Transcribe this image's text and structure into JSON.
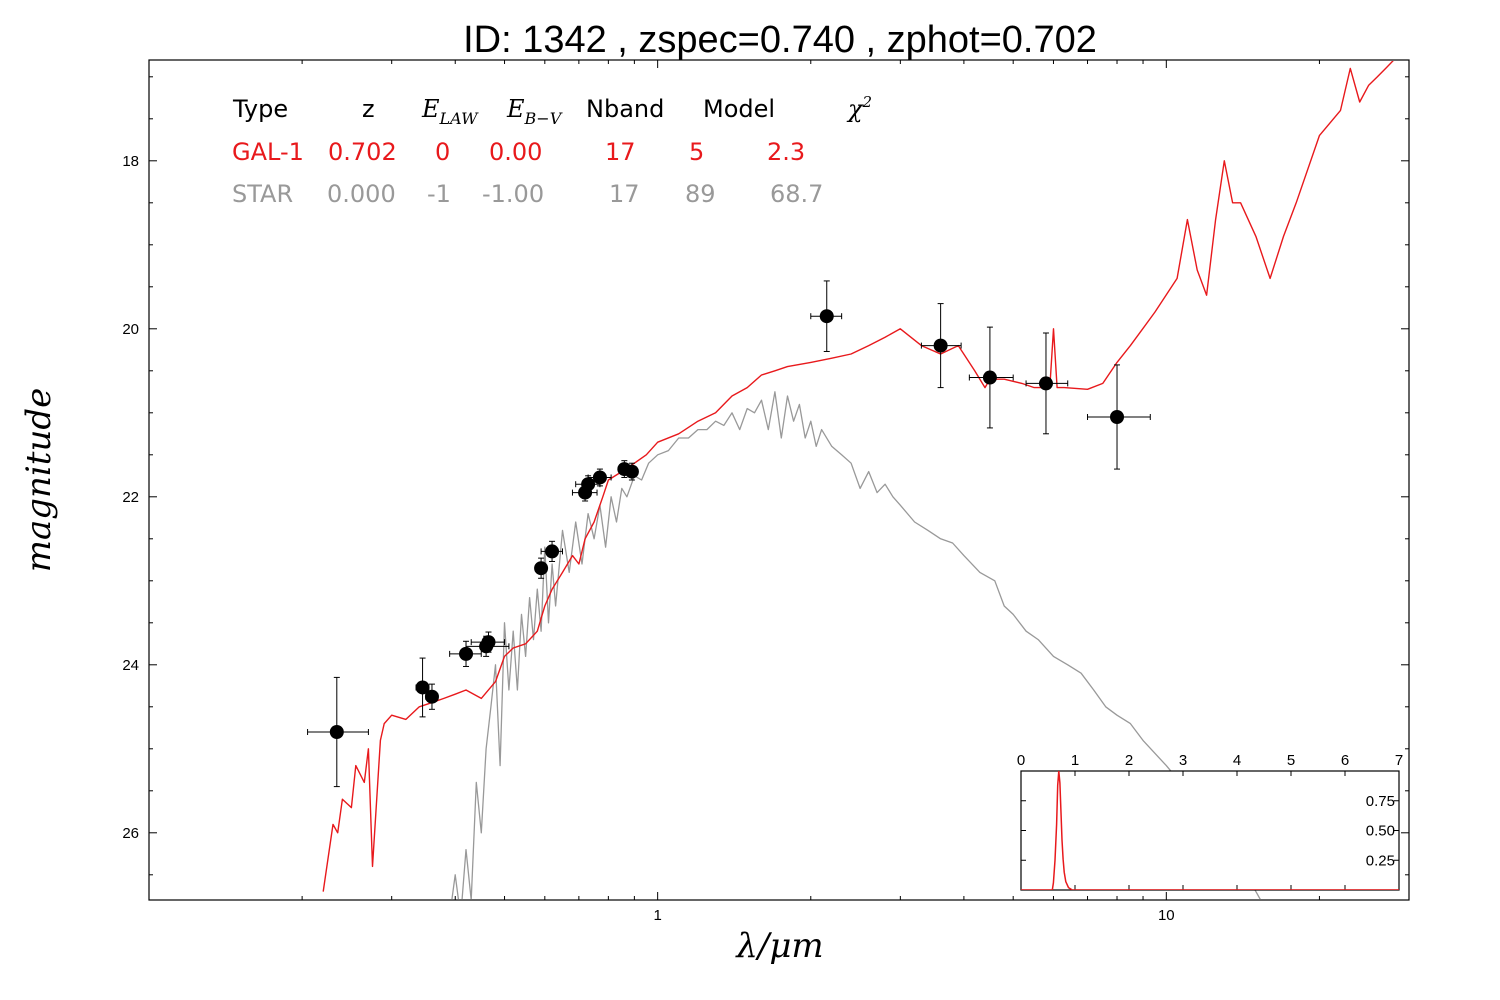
{
  "chart_data": {
    "type": "line",
    "title": "ID:  1342  , zspec=0.740 , zphot=0.702",
    "xlabel": "λ/μm",
    "ylabel": "magnitude",
    "x_scale": "log",
    "xlim": [
      0.1,
      30
    ],
    "ylim": [
      26.8,
      16.8
    ],
    "x_ticks": [
      1,
      10
    ],
    "x_tick_labels": [
      "1",
      "10"
    ],
    "y_ticks": [
      18,
      20,
      22,
      24,
      26
    ],
    "y_tick_labels": [
      "18",
      "20",
      "22",
      "24",
      "26"
    ],
    "table": {
      "headers": [
        "Type",
        "z",
        "E_LAW",
        "E_B-V",
        "Nband",
        "Model",
        "χ²"
      ],
      "rows": [
        {
          "name": "GAL-1",
          "color": "#e8191c",
          "values": [
            "GAL-1",
            "0.702",
            "0",
            "0.00",
            "17",
            "5",
            "2.3"
          ]
        },
        {
          "name": "STAR",
          "color": "#999999",
          "values": [
            "STAR",
            "0.000",
            "-1",
            "-1.00",
            "17",
            "89",
            "68.7"
          ]
        }
      ]
    },
    "series": [
      {
        "color": "#e8191c",
        "x": [
          0.22,
          0.23,
          0.235,
          0.24,
          0.25,
          0.255,
          0.265,
          0.27,
          0.275,
          0.285,
          0.29,
          0.3,
          0.32,
          0.34,
          0.36,
          0.38,
          0.4,
          0.42,
          0.45,
          0.48,
          0.5,
          0.52,
          0.55,
          0.58,
          0.6,
          0.62,
          0.65,
          0.68,
          0.7,
          0.72,
          0.75,
          0.78,
          0.8,
          0.85,
          0.9,
          0.95,
          1.0,
          1.1,
          1.2,
          1.3,
          1.4,
          1.5,
          1.6,
          1.7,
          1.8,
          2.0,
          2.2,
          2.4,
          2.6,
          2.8,
          3.0,
          3.3,
          3.6,
          3.9,
          4.2,
          4.4,
          4.5,
          4.8,
          5.2,
          5.5,
          5.9,
          6.0,
          6.1,
          6.3,
          7.0,
          7.5,
          8.0,
          8.5,
          9.5,
          10.5,
          11.0,
          11.5,
          12.0,
          12.5,
          13.0,
          13.5,
          14.0,
          15.0,
          16.0,
          17.0,
          18.0,
          20.0,
          22.0,
          23.0,
          24.0,
          25.0,
          26.0,
          27.0,
          28.0
        ],
        "y": [
          26.7,
          25.9,
          26.0,
          25.6,
          25.7,
          25.2,
          25.4,
          25.0,
          26.4,
          24.9,
          24.7,
          24.6,
          24.65,
          24.5,
          24.45,
          24.4,
          24.35,
          24.3,
          24.4,
          24.2,
          23.9,
          23.8,
          23.75,
          23.6,
          23.3,
          23.1,
          22.9,
          22.7,
          22.8,
          22.5,
          22.3,
          22.0,
          21.8,
          21.7,
          21.6,
          21.5,
          21.35,
          21.25,
          21.1,
          21.0,
          20.8,
          20.7,
          20.55,
          20.5,
          20.45,
          20.4,
          20.35,
          20.3,
          20.2,
          20.1,
          20.0,
          20.2,
          20.3,
          20.2,
          20.5,
          20.7,
          20.6,
          20.6,
          20.65,
          20.7,
          20.7,
          20.0,
          20.7,
          20.7,
          20.72,
          20.65,
          20.4,
          20.2,
          19.8,
          19.4,
          18.7,
          19.3,
          19.6,
          18.7,
          18.0,
          18.5,
          18.5,
          18.9,
          19.4,
          18.9,
          18.5,
          17.7,
          17.4,
          16.9,
          17.3,
          17.1,
          17.0,
          16.9,
          16.8
        ]
      },
      {
        "color": "#999999",
        "x": [
          0.38,
          0.39,
          0.4,
          0.41,
          0.42,
          0.43,
          0.44,
          0.45,
          0.46,
          0.47,
          0.48,
          0.49,
          0.5,
          0.51,
          0.52,
          0.53,
          0.54,
          0.55,
          0.56,
          0.57,
          0.58,
          0.59,
          0.6,
          0.61,
          0.62,
          0.63,
          0.65,
          0.67,
          0.69,
          0.71,
          0.73,
          0.75,
          0.77,
          0.79,
          0.81,
          0.83,
          0.85,
          0.87,
          0.9,
          0.93,
          0.96,
          1.0,
          1.05,
          1.1,
          1.15,
          1.2,
          1.25,
          1.3,
          1.35,
          1.4,
          1.45,
          1.5,
          1.55,
          1.6,
          1.65,
          1.7,
          1.75,
          1.8,
          1.85,
          1.9,
          1.95,
          2.0,
          2.05,
          2.1,
          2.2,
          2.3,
          2.4,
          2.5,
          2.6,
          2.7,
          2.8,
          2.9,
          3.0,
          3.2,
          3.4,
          3.6,
          3.8,
          4.0,
          4.3,
          4.6,
          4.8,
          5.0,
          5.3,
          5.6,
          6.0,
          6.4,
          6.8,
          7.2,
          7.6,
          8.0,
          8.5,
          9.0,
          10.0,
          11.0,
          12.0,
          13.0,
          14.0,
          15.0,
          16.0,
          17.0
        ],
        "y": [
          26.8,
          27.0,
          26.5,
          27.0,
          26.2,
          26.8,
          25.4,
          26.0,
          25.0,
          24.5,
          24.0,
          25.2,
          23.5,
          24.3,
          23.6,
          24.3,
          23.4,
          23.9,
          23.2,
          23.7,
          23.1,
          23.6,
          22.6,
          23.5,
          22.8,
          23.3,
          22.4,
          22.9,
          22.3,
          22.8,
          22.2,
          22.5,
          22.1,
          22.6,
          22.0,
          22.3,
          21.9,
          22.0,
          21.75,
          21.8,
          21.6,
          21.5,
          21.45,
          21.3,
          21.3,
          21.2,
          21.2,
          21.1,
          21.15,
          21.0,
          21.2,
          20.95,
          21.0,
          20.85,
          21.2,
          20.75,
          21.3,
          20.8,
          21.1,
          20.9,
          21.3,
          21.1,
          21.4,
          21.2,
          21.4,
          21.5,
          21.6,
          21.9,
          21.7,
          21.95,
          21.85,
          22.0,
          22.1,
          22.3,
          22.4,
          22.5,
          22.55,
          22.7,
          22.9,
          23.0,
          23.3,
          23.4,
          23.6,
          23.7,
          23.9,
          24.0,
          24.1,
          24.3,
          24.5,
          24.6,
          24.7,
          24.9,
          25.2,
          25.5,
          25.8,
          26.1,
          26.4,
          26.7,
          27.0,
          27.3
        ]
      }
    ],
    "points": [
      {
        "x": 0.234,
        "y": 24.8,
        "xerr": [
          0.205,
          0.27
        ],
        "yerr": 0.65
      },
      {
        "x": 0.345,
        "y": 24.27,
        "xerr": [
          0.335,
          0.355
        ],
        "yerr": 0.35
      },
      {
        "x": 0.36,
        "y": 24.38,
        "xerr": [
          0.35,
          0.37
        ],
        "yerr": 0.15
      },
      {
        "x": 0.42,
        "y": 23.87,
        "xerr": [
          0.39,
          0.45
        ],
        "yerr": 0.15
      },
      {
        "x": 0.46,
        "y": 23.78,
        "xerr": [
          0.42,
          0.51
        ],
        "yerr": 0.12
      },
      {
        "x": 0.465,
        "y": 23.73,
        "xerr": [
          0.43,
          0.5
        ],
        "yerr": 0.12
      },
      {
        "x": 0.59,
        "y": 22.85,
        "xerr": [
          0.575,
          0.605
        ],
        "yerr": 0.12
      },
      {
        "x": 0.62,
        "y": 22.65,
        "xerr": [
          0.59,
          0.65
        ],
        "yerr": 0.12
      },
      {
        "x": 0.72,
        "y": 21.95,
        "xerr": [
          0.68,
          0.76
        ],
        "yerr": 0.1
      },
      {
        "x": 0.73,
        "y": 21.85,
        "xerr": [
          0.69,
          0.77
        ],
        "yerr": 0.1
      },
      {
        "x": 0.77,
        "y": 21.77,
        "xerr": [
          0.73,
          0.81
        ],
        "yerr": 0.1
      },
      {
        "x": 0.86,
        "y": 21.67,
        "xerr": [
          0.84,
          0.88
        ],
        "yerr": 0.1
      },
      {
        "x": 0.89,
        "y": 21.7,
        "xerr": [
          0.87,
          0.91
        ],
        "yerr": 0.1
      },
      {
        "x": 2.15,
        "y": 19.85,
        "xerr": [
          2.0,
          2.3
        ],
        "yerr": 0.42
      },
      {
        "x": 3.6,
        "y": 20.2,
        "xerr": [
          3.3,
          3.95
        ],
        "yerr": 0.5
      },
      {
        "x": 4.5,
        "y": 20.58,
        "xerr": [
          4.1,
          5.0
        ],
        "yerr": 0.6
      },
      {
        "x": 5.8,
        "y": 20.65,
        "xerr": [
          5.3,
          6.4
        ],
        "yerr": 0.6
      },
      {
        "x": 8.0,
        "y": 21.05,
        "xerr": [
          7.0,
          9.3
        ],
        "yerr": 0.62
      }
    ],
    "inset": {
      "xlim": [
        0,
        7
      ],
      "ylim": [
        0,
        1
      ],
      "x_ticks": [
        0,
        1,
        2,
        3,
        4,
        5,
        6,
        7
      ],
      "y_ticks": [
        0.25,
        0.5,
        0.75
      ],
      "y_tick_labels": [
        "0.25",
        "0.50",
        "0.75"
      ],
      "pdf": {
        "x": [
          0,
          0.58,
          0.6,
          0.63,
          0.66,
          0.68,
          0.7,
          0.72,
          0.74,
          0.76,
          0.78,
          0.8,
          0.83,
          0.88,
          0.95,
          7
        ],
        "y": [
          0,
          0,
          0.06,
          0.25,
          0.55,
          0.88,
          1.0,
          0.9,
          0.65,
          0.42,
          0.26,
          0.15,
          0.07,
          0.02,
          0,
          0
        ]
      }
    }
  }
}
